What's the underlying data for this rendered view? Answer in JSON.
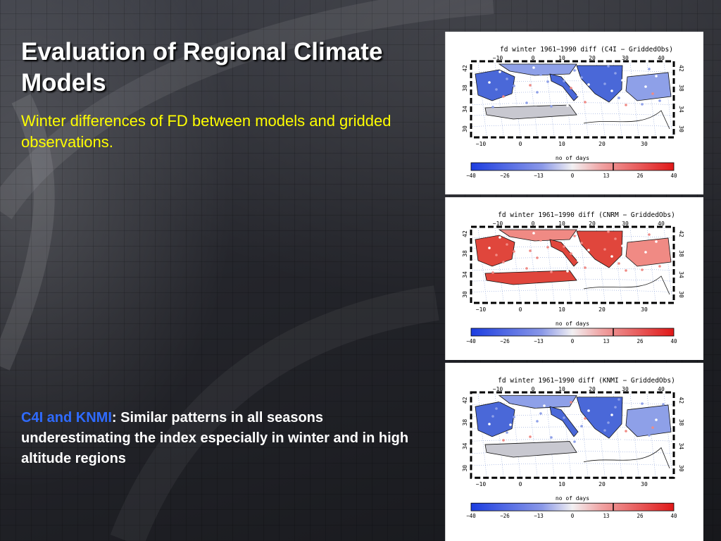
{
  "slide": {
    "title": "Evaluation of Regional Climate Models",
    "subtitle": "Winter differences of FD between models and gridded observations.",
    "note_highlight": "C4I and KNMI",
    "note_rest": ": Similar patterns in all seasons underestimating the index especially in winter and in high altitude regions",
    "colors": {
      "title": "#ffffff",
      "subtitle": "#ffff00",
      "highlight": "#2f6bff"
    }
  },
  "maps": [
    {
      "title": "fd winter 1961−1990 diff (C4I − GriddedObs)",
      "top_lon_ticks": [
        "−10",
        "0",
        "10",
        "20",
        "30",
        "40"
      ],
      "bottom_lon_ticks": [
        "−10",
        "0",
        "10",
        "20",
        "30"
      ],
      "lat_ticks": [
        "42",
        "38",
        "34",
        "30"
      ],
      "colorbar_label": "no of days",
      "colorbar_ticks": [
        "−40",
        "−26",
        "−13",
        "0",
        "13",
        "26",
        "40"
      ],
      "dominant": "blue"
    },
    {
      "title": "fd winter 1961−1990 diff (CNRM − GriddedObs)",
      "top_lon_ticks": [
        "−10",
        "0",
        "10",
        "20",
        "30",
        "40"
      ],
      "bottom_lon_ticks": [
        "−10",
        "0",
        "10",
        "20",
        "30"
      ],
      "lat_ticks": [
        "42",
        "38",
        "34",
        "30"
      ],
      "colorbar_label": "no of days",
      "colorbar_ticks": [
        "−40",
        "−26",
        "−13",
        "0",
        "13",
        "26",
        "40"
      ],
      "dominant": "red"
    },
    {
      "title": "fd winter 1961−1990 diff (KNMI − GriddedObs)",
      "top_lon_ticks": [
        "−10",
        "0",
        "10",
        "20",
        "30",
        "40"
      ],
      "bottom_lon_ticks": [
        "−10",
        "0",
        "10",
        "20",
        "30"
      ],
      "lat_ticks": [
        "42",
        "38",
        "34",
        "30"
      ],
      "colorbar_label": "no of days",
      "colorbar_ticks": [
        "−40",
        "−26",
        "−13",
        "0",
        "13",
        "26",
        "40"
      ],
      "dominant": "blue"
    }
  ]
}
